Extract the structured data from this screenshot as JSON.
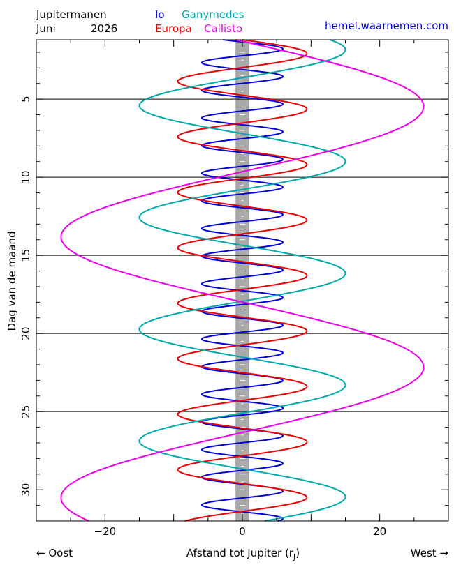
{
  "header": {
    "title": "Jupitermanen",
    "month": "Juni",
    "year": "2026",
    "website": "hemel.waarnemen.com"
  },
  "footer": {
    "east": "← Oost",
    "west": "West →",
    "xlabel_main": "Afstand tot Jupiter (r",
    "xlabel_sub": "J",
    "xlabel_end": ")"
  },
  "colors": {
    "io": "#0000dd",
    "europa": "#ee0000",
    "ganymedes": "#00aaaa",
    "callisto": "#ee00ee",
    "jupiter_band": "#a9a9a9",
    "link": "#0000dd"
  },
  "chart_data": {
    "type": "line",
    "xlabel": "Afstand tot Jupiter (rJ)",
    "ylabel": "Dag van de maand",
    "xlim": [
      -30,
      30
    ],
    "ylim": [
      32,
      1.2
    ],
    "xticks": [
      -20,
      0,
      20
    ],
    "yticks": [
      5,
      10,
      15,
      20,
      25,
      30
    ],
    "grid_days": [
      5,
      10,
      15,
      20,
      25
    ],
    "jupiter_halfwidth": 1,
    "legend_position": "top",
    "series": [
      {
        "name": "Io",
        "key": "io",
        "color": "#0000dd",
        "amplitude": 5.9,
        "period_days": 1.769,
        "phase_zero_day": 1.34
      },
      {
        "name": "Europa",
        "key": "europa",
        "color": "#ee0000",
        "amplitude": 9.4,
        "period_days": 3.551,
        "phase_zero_day": 1.2
      },
      {
        "name": "Ganymedes",
        "key": "ganymedes",
        "color": "#00aaaa",
        "amplitude": 15.0,
        "period_days": 7.155,
        "phase_zero_day": 0.05
      },
      {
        "name": "Callisto",
        "key": "callisto",
        "color": "#ee00ee",
        "amplitude": 26.4,
        "period_days": 16.69,
        "phase_zero_day": 1.3
      }
    ]
  }
}
